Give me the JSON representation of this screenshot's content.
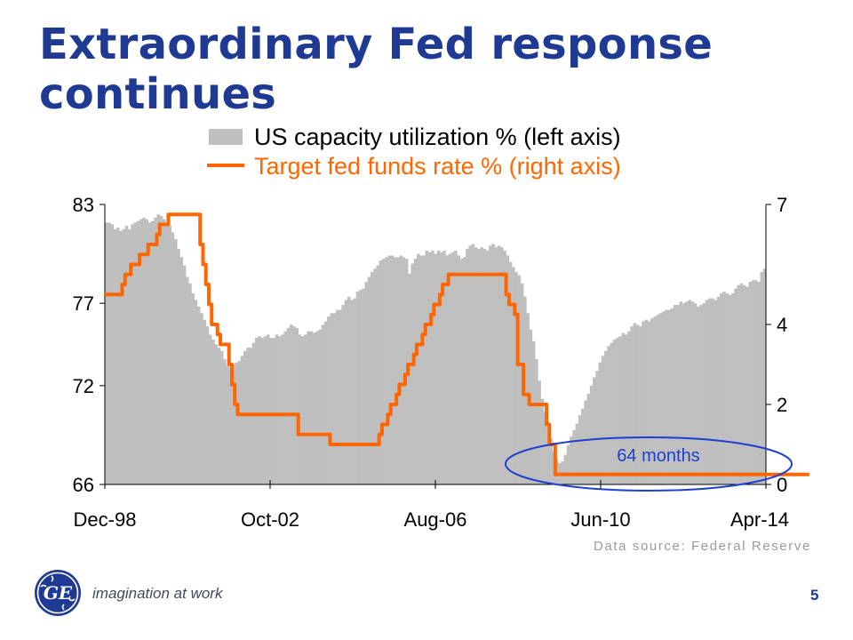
{
  "slide": {
    "title": "Extraordinary Fed response continues",
    "source": "Data source: Federal Reserve",
    "tagline": "imagination at work",
    "page_number": "5",
    "logo": "ge-monogram-logo"
  },
  "colors": {
    "title": "#1f3a93",
    "bars": "#bfbfbf",
    "line": "#ff6600",
    "annotation": "#1f3fd1"
  },
  "chart_data": {
    "type": "bar",
    "x_ticks": [
      "Dec-98",
      "Oct-02",
      "Aug-06",
      "Jun-10",
      "Apr-14"
    ],
    "y_left": {
      "ticks": [
        "83",
        "77",
        "72",
        "66"
      ],
      "range": [
        66,
        83
      ]
    },
    "y_right": {
      "ticks": [
        "7",
        "4",
        "2",
        "0"
      ],
      "range": [
        0,
        7
      ]
    },
    "legend": [
      {
        "name": "US capacity utilization % (left axis)",
        "kind": "bar"
      },
      {
        "name": "Target fed funds rate % (right axis)",
        "kind": "line"
      }
    ],
    "annotation": "64 months",
    "series": [
      {
        "name": "US capacity utilization % (left axis)",
        "axis": "left",
        "values": [
          81.9,
          81.9,
          81.8,
          81.5,
          81.6,
          81.4,
          81.5,
          81.7,
          81.5,
          81.8,
          81.9,
          82.0,
          82.1,
          82.2,
          82.1,
          81.9,
          82.0,
          82.2,
          82.4,
          82.3,
          82.1,
          81.9,
          81.7,
          81.3,
          80.9,
          80.3,
          79.8,
          79.3,
          78.6,
          78.2,
          77.6,
          77.2,
          76.8,
          76.4,
          76.0,
          75.6,
          75.1,
          74.8,
          74.5,
          74.3,
          74.1,
          73.6,
          73.2,
          73.1,
          73.3,
          73.4,
          73.5,
          73.8,
          74.1,
          74.3,
          74.3,
          74.6,
          74.9,
          75.0,
          74.9,
          75.0,
          75.1,
          74.9,
          74.9,
          75.1,
          75.0,
          75.1,
          75.3,
          75.5,
          75.7,
          75.6,
          75.5,
          75.1,
          75.0,
          75.1,
          75.3,
          75.3,
          75.2,
          75.3,
          75.4,
          75.7,
          75.9,
          76.2,
          76.4,
          76.4,
          76.6,
          76.6,
          76.9,
          77.2,
          77.4,
          77.2,
          77.3,
          77.7,
          77.8,
          77.9,
          78.3,
          78.6,
          78.9,
          79.1,
          79.3,
          79.6,
          79.7,
          79.8,
          79.9,
          79.9,
          79.8,
          79.8,
          79.9,
          79.8,
          79.7,
          78.8,
          79.4,
          79.7,
          80.0,
          79.9,
          79.9,
          80.2,
          80.1,
          80.2,
          80.0,
          80.2,
          80.1,
          80.2,
          79.9,
          80.0,
          80.1,
          80.2,
          79.9,
          79.7,
          79.8,
          80.3,
          80.5,
          80.6,
          80.4,
          80.3,
          80.4,
          80.3,
          80.2,
          80.5,
          80.6,
          80.4,
          80.5,
          80.4,
          80.2,
          79.9,
          79.5,
          79.2,
          78.9,
          78.7,
          78.2,
          77.4,
          76.4,
          75.4,
          74.7,
          73.6,
          72.3,
          71.2,
          70.4,
          69.5,
          68.8,
          68.0,
          67.5,
          67.3,
          67.4,
          67.8,
          68.4,
          68.9,
          69.3,
          69.7,
          70.2,
          70.6,
          71.1,
          71.5,
          72.0,
          72.5,
          72.9,
          73.4,
          73.8,
          74.1,
          74.4,
          74.6,
          74.8,
          74.9,
          75.0,
          75.2,
          75.1,
          75.3,
          75.6,
          75.8,
          75.7,
          75.6,
          75.9,
          76.0,
          75.9,
          76.1,
          76.2,
          76.3,
          76.4,
          76.5,
          76.6,
          76.6,
          76.7,
          76.9,
          76.9,
          77.1,
          77.0,
          77.1,
          77.2,
          77.1,
          77.0,
          76.8,
          76.9,
          77.0,
          77.2,
          77.3,
          77.3,
          77.2,
          77.4,
          77.6,
          77.7,
          77.6,
          77.5,
          77.6,
          77.9,
          78.1,
          78.2,
          78.1,
          78.0,
          78.3,
          78.4,
          78.4,
          78.3,
          78.9,
          79.1
        ]
      },
      {
        "name": "Target fed funds rate % (right axis)",
        "axis": "right",
        "values": [
          4.75,
          4.75,
          4.75,
          4.75,
          4.75,
          4.75,
          5.0,
          5.25,
          5.25,
          5.5,
          5.5,
          5.5,
          5.75,
          5.75,
          5.75,
          6.0,
          6.0,
          6.0,
          6.25,
          6.5,
          6.5,
          6.5,
          6.75,
          6.75,
          6.75,
          6.75,
          6.75,
          6.75,
          6.75,
          6.75,
          6.75,
          6.75,
          6.75,
          6.0,
          5.5,
          5.0,
          4.5,
          4.0,
          4.0,
          3.75,
          3.5,
          3.5,
          3.5,
          3.0,
          2.5,
          2.0,
          1.75,
          1.75,
          1.75,
          1.75,
          1.75,
          1.75,
          1.75,
          1.75,
          1.75,
          1.75,
          1.75,
          1.75,
          1.75,
          1.75,
          1.75,
          1.75,
          1.75,
          1.75,
          1.75,
          1.75,
          1.75,
          1.25,
          1.25,
          1.25,
          1.25,
          1.25,
          1.25,
          1.25,
          1.25,
          1.25,
          1.25,
          1.25,
          1.0,
          1.0,
          1.0,
          1.0,
          1.0,
          1.0,
          1.0,
          1.0,
          1.0,
          1.0,
          1.0,
          1.0,
          1.0,
          1.0,
          1.0,
          1.0,
          1.0,
          1.25,
          1.5,
          1.5,
          1.75,
          2.0,
          2.0,
          2.25,
          2.5,
          2.5,
          2.75,
          3.0,
          3.0,
          3.25,
          3.5,
          3.5,
          3.75,
          4.0,
          4.0,
          4.25,
          4.5,
          4.5,
          4.75,
          5.0,
          5.0,
          5.25,
          5.25,
          5.25,
          5.25,
          5.25,
          5.25,
          5.25,
          5.25,
          5.25,
          5.25,
          5.25,
          5.25,
          5.25,
          5.25,
          5.25,
          5.25,
          5.25,
          5.25,
          5.25,
          5.25,
          4.75,
          4.5,
          4.5,
          4.25,
          3.0,
          3.0,
          2.25,
          2.25,
          2.0,
          2.0,
          2.0,
          2.0,
          2.0,
          2.0,
          1.5,
          1.0,
          1.0,
          0.25,
          0.25,
          0.25,
          0.25,
          0.25,
          0.25,
          0.25,
          0.25,
          0.25,
          0.25,
          0.25,
          0.25,
          0.25,
          0.25,
          0.25,
          0.25,
          0.25,
          0.25,
          0.25,
          0.25,
          0.25,
          0.25,
          0.25,
          0.25,
          0.25,
          0.25,
          0.25,
          0.25,
          0.25,
          0.25,
          0.25,
          0.25,
          0.25,
          0.25,
          0.25,
          0.25,
          0.25,
          0.25,
          0.25,
          0.25,
          0.25,
          0.25,
          0.25,
          0.25,
          0.25,
          0.25,
          0.25,
          0.25,
          0.25,
          0.25,
          0.25,
          0.25,
          0.25,
          0.25,
          0.25,
          0.25,
          0.25,
          0.25,
          0.25,
          0.25,
          0.25,
          0.25,
          0.25,
          0.25,
          0.25,
          0.25,
          0.25,
          0.25,
          0.25,
          0.25,
          0.25,
          0.25,
          0.25,
          0.25,
          0.25,
          0.25,
          0.25,
          0.25,
          0.25,
          0.25,
          0.25,
          0.25,
          0.25,
          0.25,
          0.25,
          0.25,
          0.25,
          0.25
        ]
      }
    ]
  }
}
